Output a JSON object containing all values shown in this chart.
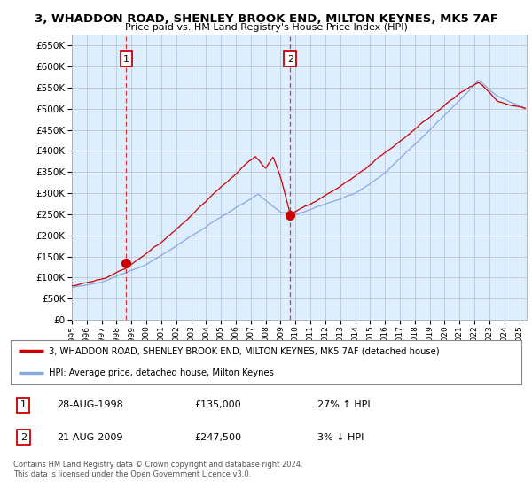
{
  "title1": "3, WHADDON ROAD, SHENLEY BROOK END, MILTON KEYNES, MK5 7AF",
  "title2": "Price paid vs. HM Land Registry's House Price Index (HPI)",
  "sale1_date": 1998.65,
  "sale1_price": 135000,
  "sale1_label": "1",
  "sale1_text": "28-AUG-1998",
  "sale1_amount": "£135,000",
  "sale1_hpi": "27% ↑ HPI",
  "sale2_date": 2009.64,
  "sale2_price": 247500,
  "sale2_label": "2",
  "sale2_text": "21-AUG-2009",
  "sale2_amount": "£247,500",
  "sale2_hpi": "3% ↓ HPI",
  "legend_line1": "3, WHADDON ROAD, SHENLEY BROOK END, MILTON KEYNES, MK5 7AF (detached house)",
  "legend_line2": "HPI: Average price, detached house, Milton Keynes",
  "copyright": "Contains HM Land Registry data © Crown copyright and database right 2024.\nThis data is licensed under the Open Government Licence v3.0.",
  "line_color_red": "#cc0000",
  "line_color_blue": "#88aadd",
  "chart_bg": "#ddeeff",
  "ylim_min": 0,
  "ylim_max": 675000,
  "xlim_min": 1995.0,
  "xlim_max": 2025.5,
  "bg_color": "#ffffff",
  "grid_color": "#bbbbcc"
}
